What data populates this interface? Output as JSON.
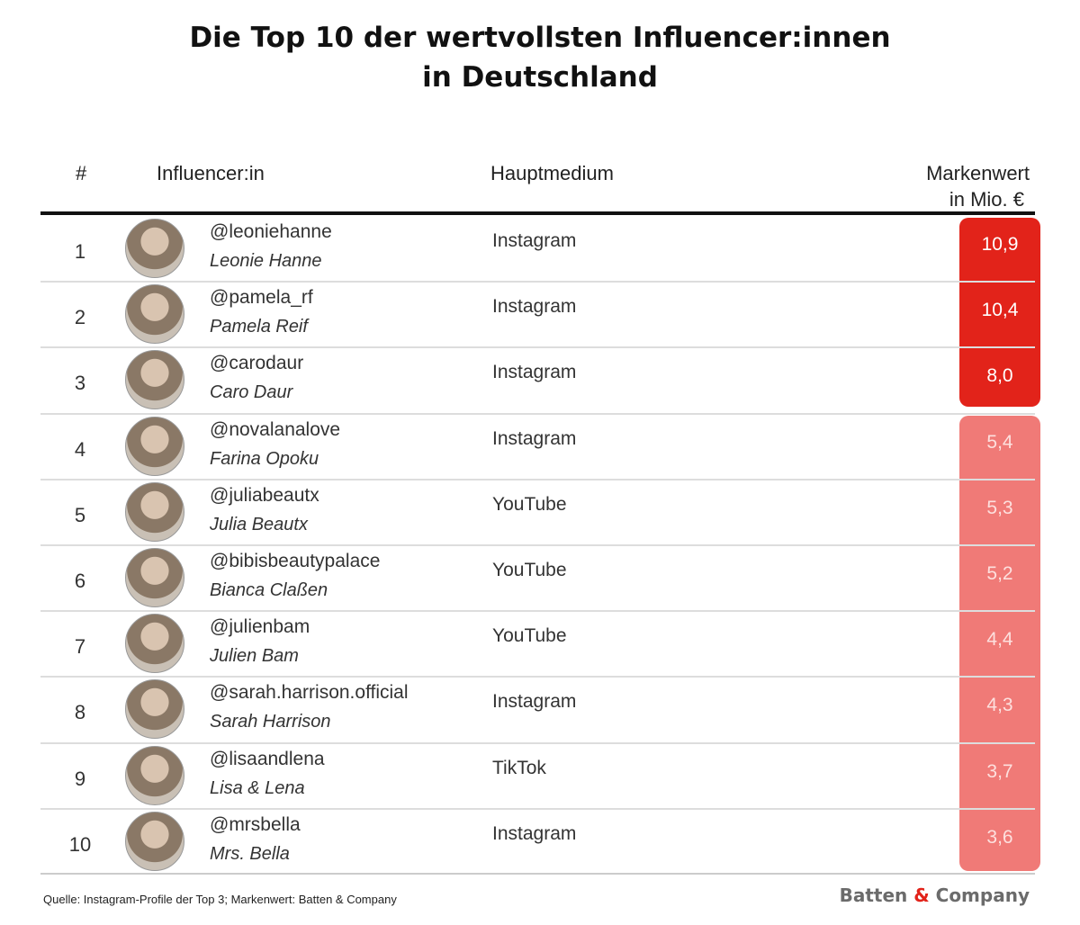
{
  "title": [
    "Die Top 10 der wertvollsten Influencer:innen",
    "in Deutschland"
  ],
  "table": {
    "header": {
      "rank": "#",
      "influencer": "Influencer:in",
      "medium": "Hauptmedium",
      "value": [
        "Markenwert",
        "in Mio. €"
      ]
    },
    "rows": [
      {
        "rank": "1",
        "handle": "@leoniehanne",
        "name": "Leonie Hanne",
        "medium": "Instagram",
        "value": "10,9"
      },
      {
        "rank": "2",
        "handle": "@pamela_rf",
        "name": "Pamela Reif",
        "medium": "Instagram",
        "value": "10,4"
      },
      {
        "rank": "3",
        "handle": "@carodaur",
        "name": "Caro Daur",
        "medium": "Instagram",
        "value": "8,0"
      },
      {
        "rank": "4",
        "handle": "@novalanalove",
        "name": "Farina Opoku",
        "medium": "Instagram",
        "value": "5,4"
      },
      {
        "rank": "5",
        "handle": "@juliabeautx",
        "name": "Julia Beautx",
        "medium": "YouTube",
        "value": "5,3"
      },
      {
        "rank": "6",
        "handle": "@bibisbeautypalace",
        "name": "Bianca Claßen",
        "medium": "YouTube",
        "value": "5,2"
      },
      {
        "rank": "7",
        "handle": "@julienbam",
        "name": "Julien Bam",
        "medium": "YouTube",
        "value": "4,4"
      },
      {
        "rank": "8",
        "handle": "@sarah.harrison.official",
        "name": "Sarah Harrison",
        "medium": "Instagram",
        "value": "4,3"
      },
      {
        "rank": "9",
        "handle": "@lisaandlena",
        "name": "Lisa & Lena",
        "medium": "TikTok",
        "value": "3,7"
      },
      {
        "rank": "10",
        "handle": "@mrsbella",
        "name": "Mrs. Bella",
        "medium": "Instagram",
        "value": "3,6"
      }
    ]
  },
  "footer": {
    "source": "Quelle: Instagram-Profile der Top 3; Markenwert: Batten & Company",
    "logo": {
      "left": "Batten",
      "amp": "&",
      "right": "Company"
    }
  }
}
